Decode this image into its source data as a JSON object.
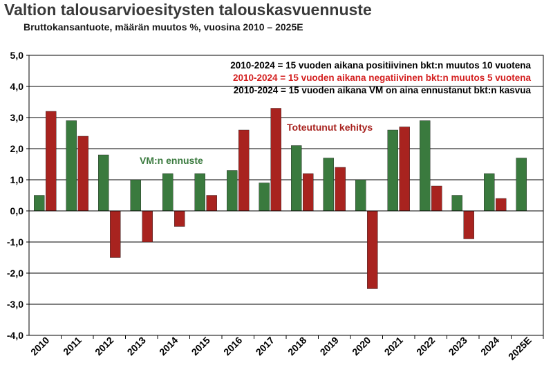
{
  "chart_data": {
    "type": "bar",
    "title": "Valtion talousarvioesitysten talouskasvuennuste",
    "subtitle": "Bruttokansantuote, määrän muutos %, vuosina 2010 – 2025E",
    "categories": [
      "2010",
      "2011",
      "2012",
      "2013",
      "2014",
      "2015",
      "2016",
      "2017",
      "2018",
      "2019",
      "2020",
      "2021",
      "2022",
      "2023",
      "2024",
      "2025E"
    ],
    "series": [
      {
        "name": "VM:n ennuste",
        "color": "#3a7a3e",
        "values": [
          0.5,
          2.9,
          1.8,
          1.0,
          1.2,
          1.2,
          1.3,
          0.9,
          2.1,
          1.7,
          1.0,
          2.6,
          2.9,
          0.5,
          1.2,
          1.7
        ]
      },
      {
        "name": "Toteutunut kehitys",
        "color": "#a8231f",
        "values": [
          3.2,
          2.4,
          -1.5,
          -1.0,
          -0.5,
          0.5,
          2.6,
          3.3,
          1.2,
          1.4,
          -2.5,
          2.7,
          0.8,
          -0.9,
          0.4,
          null
        ]
      }
    ],
    "ylim": [
      -4.0,
      5.0
    ],
    "yticks": [
      "5,0",
      "4,0",
      "3,0",
      "2,0",
      "1,0",
      "0,0",
      "-1,0",
      "-2,0",
      "-3,0",
      "-4,0"
    ],
    "grid": true,
    "annotations": [
      {
        "text": "2010-2024 = 15 vuoden aikana positiivinen bkt:n muutos 10 vuotena",
        "color": "#000000"
      },
      {
        "text": "2010-2024 = 15 vuoden aikana negatiivinen bkt:n muutos 5 vuotena",
        "color": "#d42020"
      },
      {
        "text": "2010-2024 = 15 vuoden aikana VM on aina ennustanut bkt:n kasvua",
        "color": "#000000"
      }
    ]
  }
}
